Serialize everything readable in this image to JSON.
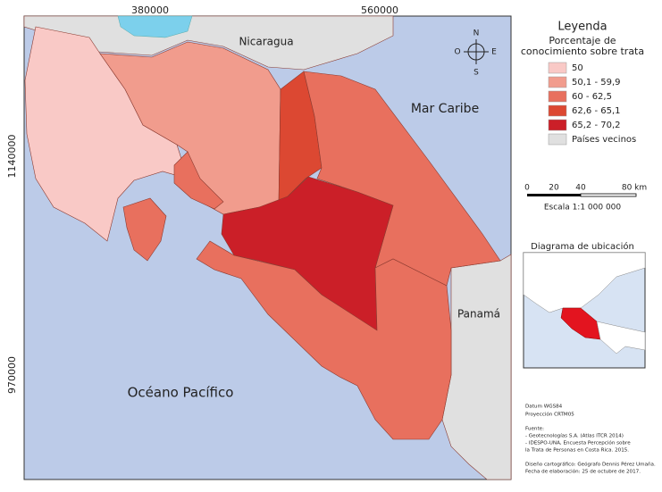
{
  "map": {
    "grid_labels": {
      "x": [
        380000,
        560000
      ],
      "y": [
        1140000,
        970000
      ]
    },
    "places": {
      "nicaragua": "Nicaragua",
      "caribbean": "Mar Caribe",
      "panama": "Panamá",
      "pacific": "Océano Pacífico"
    },
    "compass": {
      "n": "N",
      "s": "S",
      "e": "E",
      "w": "O"
    }
  },
  "legend": {
    "title": "Leyenda",
    "subtitle": [
      "Porcentaje de",
      "conocimiento sobre trata"
    ],
    "items": [
      {
        "label": "50",
        "color": "#f9c9c6"
      },
      {
        "label": "50,1 - 59,9",
        "color": "#f19c8d"
      },
      {
        "label": "60 - 62,5",
        "color": "#e8705e"
      },
      {
        "label": "62,6 - 65,1",
        "color": "#dc4832"
      },
      {
        "label": "65,2 - 70,2",
        "color": "#cb1f28"
      },
      {
        "label": "Países vecinos",
        "color": "#e0e0e0"
      }
    ]
  },
  "scale": {
    "ticks": [
      "0",
      "20",
      "40",
      "80 km"
    ],
    "caption": "Escala 1:1 000 000"
  },
  "inset": {
    "title": "Diagrama de ubicación"
  },
  "notes": [
    "Datum WGS84",
    "Proyección CRTM05",
    "Fuente:",
    "- Geotecnologías S.A. (Atlas ITCR 2014)",
    "- IDESPO-UNA, Encuesta Percepción sobre",
    "la Trata de Personas en Costa Rica. 2015.",
    "Diseño cartográfico: Geógrafo Dennis Pérez Umaña.",
    "Fecha de elaboración: 25 de octubre de 2017."
  ]
}
